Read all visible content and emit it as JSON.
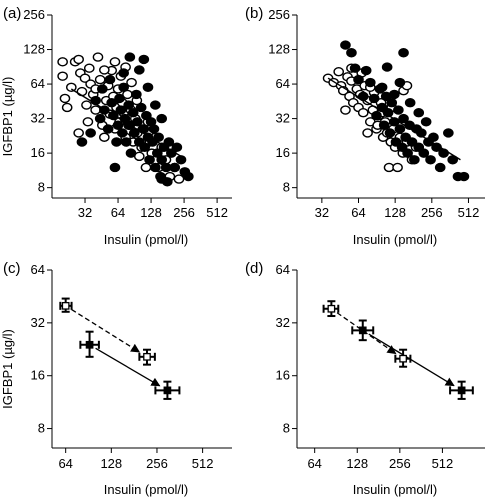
{
  "chart_data": [
    {
      "panel": "(a)",
      "type": "scatter",
      "xlabel": "Insulin (pmol/l)",
      "ylabel": "IGFBP1 (µg/l)",
      "x_scale": "log2",
      "y_scale": "log2",
      "xlim": [
        16,
        700
      ],
      "ylim": [
        6.5,
        256
      ],
      "x_ticks": [
        32,
        64,
        128,
        256,
        512
      ],
      "y_ticks": [
        8,
        16,
        32,
        64,
        128,
        256
      ],
      "series": [
        {
          "name": "",
          "marker": "open-circle",
          "points": [
            [
              20,
              100
            ],
            [
              20,
              75
            ],
            [
              21,
              48
            ],
            [
              22,
              40
            ],
            [
              24,
              60
            ],
            [
              26,
              100
            ],
            [
              28,
              105
            ],
            [
              29,
              80
            ],
            [
              30,
              55
            ],
            [
              32,
              72
            ],
            [
              33,
              42
            ],
            [
              35,
              88
            ],
            [
              36,
              64
            ],
            [
              38,
              52
            ],
            [
              40,
              38
            ],
            [
              42,
              110
            ],
            [
              44,
              70
            ],
            [
              46,
              28
            ],
            [
              48,
              22
            ],
            [
              50,
              46
            ],
            [
              52,
              62
            ],
            [
              54,
              35
            ],
            [
              56,
              84
            ],
            [
              58,
              50
            ],
            [
              60,
              26
            ],
            [
              62,
              40
            ],
            [
              64,
              58
            ],
            [
              66,
              30
            ],
            [
              68,
              75
            ],
            [
              70,
              44
            ],
            [
              72,
              36
            ],
            [
              75,
              22
            ],
            [
              78,
              52
            ],
            [
              80,
              28
            ],
            [
              84,
              38
            ],
            [
              88,
              20
            ],
            [
              92,
              32
            ],
            [
              96,
              24
            ],
            [
              100,
              15
            ],
            [
              105,
              18
            ],
            [
              110,
              26
            ],
            [
              115,
              12
            ],
            [
              120,
              30
            ],
            [
              125,
              20
            ],
            [
              130,
              16
            ],
            [
              140,
              22
            ],
            [
              150,
              12
            ],
            [
              160,
              18
            ],
            [
              175,
              14
            ],
            [
              190,
              10
            ],
            [
              210,
              12
            ],
            [
              230,
              9.5
            ],
            [
              60,
              100
            ],
            [
              75,
              90
            ],
            [
              85,
              66
            ],
            [
              95,
              46
            ],
            [
              48,
              85
            ],
            [
              40,
              58
            ],
            [
              34,
              30
            ],
            [
              28,
              24
            ]
          ]
        },
        {
          "name": "",
          "marker": "filled-circle",
          "points": [
            [
              30,
              20
            ],
            [
              36,
              24
            ],
            [
              40,
              46
            ],
            [
              44,
              32
            ],
            [
              46,
              58
            ],
            [
              48,
              38
            ],
            [
              52,
              26
            ],
            [
              54,
              70
            ],
            [
              56,
              44
            ],
            [
              58,
              34
            ],
            [
              62,
              20
            ],
            [
              64,
              28
            ],
            [
              66,
              48
            ],
            [
              68,
              38
            ],
            [
              70,
              24
            ],
            [
              72,
              60
            ],
            [
              74,
              32
            ],
            [
              76,
              20
            ],
            [
              80,
              42
            ],
            [
              82,
              28
            ],
            [
              84,
              16
            ],
            [
              88,
              36
            ],
            [
              90,
              24
            ],
            [
              94,
              52
            ],
            [
              96,
              30
            ],
            [
              100,
              20
            ],
            [
              104,
              40
            ],
            [
              108,
              26
            ],
            [
              112,
              18
            ],
            [
              116,
              34
            ],
            [
              120,
              22
            ],
            [
              124,
              14
            ],
            [
              128,
              30
            ],
            [
              132,
              20
            ],
            [
              136,
              26
            ],
            [
              140,
              12
            ],
            [
              146,
              16
            ],
            [
              150,
              22
            ],
            [
              156,
              10
            ],
            [
              160,
              14
            ],
            [
              168,
              18
            ],
            [
              176,
              12
            ],
            [
              186,
              20
            ],
            [
              196,
              16
            ],
            [
              210,
              12
            ],
            [
              220,
              18
            ],
            [
              240,
              14
            ],
            [
              260,
              11
            ],
            [
              280,
              10
            ],
            [
              60,
              12
            ],
            [
              100,
              85
            ],
            [
              110,
              105
            ],
            [
              120,
              60
            ],
            [
              140,
              42
            ],
            [
              160,
              32
            ],
            [
              82,
              110
            ],
            [
              72,
              80
            ],
            [
              160,
              9.5
            ],
            [
              180,
              9
            ]
          ]
        }
      ],
      "trendline": {
        "from": [
          24,
          58
        ],
        "to": [
          240,
          15
        ]
      }
    },
    {
      "panel": "(b)",
      "type": "scatter",
      "xlabel": "Insulin (pmol/l)",
      "ylabel": "",
      "x_scale": "log2",
      "y_scale": "log2",
      "xlim": [
        20,
        700
      ],
      "ylim": [
        6.5,
        256
      ],
      "x_ticks": [
        32,
        64,
        128,
        256,
        512
      ],
      "y_ticks": [
        8,
        16,
        32,
        64,
        128,
        256
      ],
      "series": [
        {
          "name": "",
          "marker": "open-circle",
          "points": [
            [
              36,
              72
            ],
            [
              40,
              66
            ],
            [
              44,
              82
            ],
            [
              46,
              62
            ],
            [
              48,
              56
            ],
            [
              52,
              74
            ],
            [
              54,
              50
            ],
            [
              56,
              68
            ],
            [
              58,
              44
            ],
            [
              62,
              58
            ],
            [
              64,
              40
            ],
            [
              66,
              52
            ],
            [
              70,
              36
            ],
            [
              72,
              62
            ],
            [
              76,
              46
            ],
            [
              80,
              30
            ],
            [
              84,
              38
            ],
            [
              86,
              54
            ],
            [
              90,
              26
            ],
            [
              94,
              34
            ],
            [
              98,
              44
            ],
            [
              102,
              22
            ],
            [
              106,
              30
            ],
            [
              110,
              24
            ],
            [
              114,
              12
            ],
            [
              118,
              20
            ],
            [
              124,
              26
            ],
            [
              128,
              18
            ],
            [
              134,
              12
            ],
            [
              140,
              22
            ],
            [
              148,
              16
            ],
            [
              160,
              20
            ],
            [
              176,
              14
            ],
            [
              190,
              18
            ],
            [
              56,
              88
            ],
            [
              68,
              80
            ],
            [
              80,
              60
            ],
            [
              100,
              36
            ],
            [
              150,
              56
            ],
            [
              160,
              62
            ],
            [
              120,
              40
            ],
            [
              92,
              28
            ],
            [
              76,
              24
            ],
            [
              50,
              38
            ]
          ]
        },
        {
          "name": "",
          "marker": "filled-circle",
          "points": [
            [
              50,
              140
            ],
            [
              56,
              120
            ],
            [
              60,
              88
            ],
            [
              64,
              70
            ],
            [
              70,
              50
            ],
            [
              74,
              84
            ],
            [
              80,
              66
            ],
            [
              86,
              48
            ],
            [
              90,
              34
            ],
            [
              96,
              58
            ],
            [
              100,
              40
            ],
            [
              104,
              28
            ],
            [
              108,
              50
            ],
            [
              112,
              36
            ],
            [
              116,
              24
            ],
            [
              120,
              44
            ],
            [
              126,
              30
            ],
            [
              130,
              20
            ],
            [
              136,
              38
            ],
            [
              140,
              26
            ],
            [
              146,
              18
            ],
            [
              150,
              32
            ],
            [
              156,
              22
            ],
            [
              162,
              16
            ],
            [
              168,
              28
            ],
            [
              176,
              20
            ],
            [
              184,
              14
            ],
            [
              192,
              26
            ],
            [
              200,
              18
            ],
            [
              210,
              24
            ],
            [
              220,
              16
            ],
            [
              230,
              30
            ],
            [
              240,
              20
            ],
            [
              250,
              14
            ],
            [
              264,
              22
            ],
            [
              280,
              18
            ],
            [
              300,
              12
            ],
            [
              320,
              16
            ],
            [
              350,
              24
            ],
            [
              380,
              14
            ],
            [
              420,
              10
            ],
            [
              470,
              10
            ],
            [
              100,
              60
            ],
            [
              126,
              52
            ],
            [
              140,
              66
            ],
            [
              170,
              44
            ],
            [
              200,
              36
            ],
            [
              150,
              120
            ],
            [
              110,
              90
            ]
          ]
        }
      ],
      "trendline": {
        "from": [
          36,
          72
        ],
        "to": [
          440,
          14
        ]
      }
    },
    {
      "panel": "(c)",
      "type": "scatter",
      "xlabel": "Insulin (pmol/l)",
      "ylabel": "IGFBP1 (µg/l)",
      "x_scale": "log2",
      "y_scale": "log2",
      "xlim": [
        52,
        800
      ],
      "ylim": [
        6.2,
        64
      ],
      "x_ticks": [
        64,
        128,
        256,
        512
      ],
      "y_ticks": [
        8,
        16,
        32,
        64
      ],
      "points": [
        {
          "marker": "open",
          "x": 64,
          "y": 40,
          "xerr": [
            59,
            70
          ],
          "yerr": [
            37,
            44
          ]
        },
        {
          "marker": "filled",
          "x": 92,
          "y": 24,
          "xerr": [
            80,
            106
          ],
          "yerr": [
            20.5,
            28.5
          ]
        },
        {
          "marker": "open",
          "x": 220,
          "y": 20.5,
          "xerr": [
            196,
            248
          ],
          "yerr": [
            18.5,
            22.5
          ]
        },
        {
          "marker": "filled",
          "x": 300,
          "y": 13.2,
          "xerr": [
            250,
            360
          ],
          "yerr": [
            11.8,
            14.8
          ]
        }
      ],
      "arrows": [
        {
          "from": [
            64,
            40
          ],
          "to": [
            220,
            20.5
          ],
          "style": "dashed"
        },
        {
          "from": [
            92,
            24
          ],
          "to": [
            300,
            13.2
          ],
          "style": "solid"
        }
      ]
    },
    {
      "panel": "(d)",
      "type": "scatter",
      "xlabel": "Insulin (pmol/l)",
      "ylabel": "",
      "x_scale": "log2",
      "y_scale": "log2",
      "xlim": [
        48,
        1024
      ],
      "ylim": [
        6.2,
        64
      ],
      "x_ticks": [
        64,
        128,
        256,
        512
      ],
      "y_ticks": [
        8,
        16,
        32,
        64
      ],
      "points": [
        {
          "marker": "open",
          "x": 84,
          "y": 38.5,
          "xerr": [
            74,
            94
          ],
          "yerr": [
            35,
            42.5
          ]
        },
        {
          "marker": "filled",
          "x": 140,
          "y": 29,
          "xerr": [
            118,
            166
          ],
          "yerr": [
            25.5,
            33
          ]
        },
        {
          "marker": "open",
          "x": 270,
          "y": 20,
          "xerr": [
            238,
            304
          ],
          "yerr": [
            18,
            22.5
          ]
        },
        {
          "marker": "filled",
          "x": 700,
          "y": 13.2,
          "xerr": [
            580,
            840
          ],
          "yerr": [
            11.8,
            14.8
          ]
        }
      ],
      "arrows": [
        {
          "from": [
            84,
            38.5
          ],
          "to": [
            270,
            20
          ],
          "style": "dashed"
        },
        {
          "from": [
            140,
            29
          ],
          "to": [
            700,
            13.2
          ],
          "style": "solid"
        }
      ]
    }
  ]
}
